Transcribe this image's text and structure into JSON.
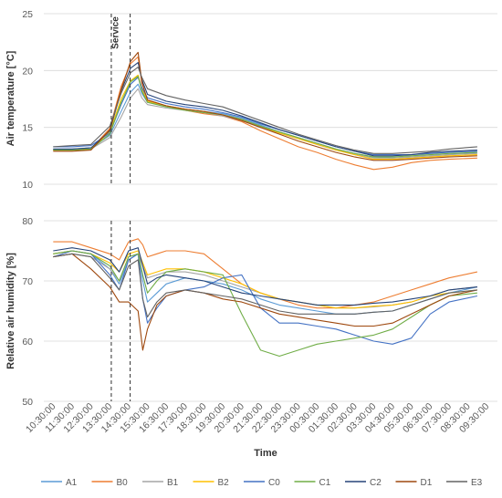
{
  "chart_data": [
    {
      "type": "line",
      "ylabel": "Air temperature [°C]",
      "ylim": [
        10,
        25
      ],
      "yticks": [
        10,
        15,
        20,
        25
      ],
      "grid": true,
      "annotation": "Service",
      "vlines_x": [
        13.58,
        14.58
      ],
      "categories": [
        "10:30:00",
        "11:30:00",
        "12:30:00",
        "13:30:00",
        "14:30:00",
        "15:30:00",
        "16:30:00",
        "17:30:00",
        "18:30:00",
        "19:30:00",
        "20:30:00",
        "21:30:00",
        "22:30:00",
        "23:30:00",
        "00:30:00",
        "01:30:00",
        "02:30:00",
        "03:30:00",
        "04:30:00",
        "05:30:00",
        "06:30:00",
        "07:30:00",
        "08:30:00",
        "09:30:00"
      ],
      "x": [
        0,
        1,
        2,
        3,
        3.6,
        4.1,
        4.5,
        4.7,
        5,
        6,
        7,
        8,
        9,
        10,
        11,
        12,
        13,
        14,
        15,
        16,
        17,
        18,
        19,
        20,
        21,
        22.5
      ],
      "series": [
        {
          "name": "A1",
          "color": "#5b9bd5",
          "values": [
            13.1,
            13.1,
            13.2,
            14.3,
            16.4,
            18.1,
            18.8,
            18.0,
            17.2,
            16.9,
            16.6,
            16.4,
            16.2,
            15.8,
            15.2,
            14.6,
            14.1,
            13.6,
            13.1,
            12.7,
            12.4,
            12.3,
            12.4,
            12.5,
            12.6,
            12.8
          ]
        },
        {
          "name": "B0",
          "color": "#ed7d31",
          "values": [
            13.0,
            13.0,
            13.1,
            14.9,
            18.6,
            20.6,
            21.2,
            18.9,
            17.4,
            16.9,
            16.5,
            16.2,
            16.0,
            15.5,
            14.7,
            14.0,
            13.3,
            12.8,
            12.2,
            11.7,
            11.3,
            11.5,
            11.9,
            12.1,
            12.2,
            12.3
          ]
        },
        {
          "name": "B1",
          "color": "#a5a5a5",
          "values": [
            13.0,
            13.0,
            13.1,
            14.1,
            15.9,
            17.6,
            18.4,
            17.6,
            17.0,
            16.7,
            16.5,
            16.3,
            16.0,
            15.6,
            15.0,
            14.5,
            14.0,
            13.5,
            13.0,
            12.6,
            12.3,
            12.3,
            12.4,
            12.5,
            12.6,
            12.7
          ]
        },
        {
          "name": "B2",
          "color": "#ffc000",
          "values": [
            13.0,
            13.0,
            13.1,
            14.6,
            17.5,
            19.1,
            19.6,
            18.4,
            17.3,
            16.9,
            16.6,
            16.4,
            16.1,
            15.7,
            15.1,
            14.5,
            14.0,
            13.5,
            13.0,
            12.6,
            12.2,
            12.2,
            12.3,
            12.4,
            12.5,
            12.6
          ]
        },
        {
          "name": "C0",
          "color": "#4472c4",
          "values": [
            13.3,
            13.3,
            13.4,
            14.5,
            17.0,
            18.8,
            19.4,
            18.5,
            17.6,
            17.1,
            16.8,
            16.6,
            16.3,
            15.9,
            15.3,
            14.8,
            14.3,
            13.8,
            13.3,
            12.9,
            12.6,
            12.6,
            12.6,
            12.7,
            12.8,
            12.9
          ]
        },
        {
          "name": "C1",
          "color": "#70ad47",
          "values": [
            13.0,
            13.0,
            13.1,
            14.4,
            17.2,
            19.0,
            19.5,
            18.2,
            17.2,
            16.8,
            16.5,
            16.3,
            16.1,
            15.7,
            15.1,
            14.6,
            14.1,
            13.6,
            13.1,
            12.7,
            12.4,
            12.4,
            12.5,
            12.6,
            12.7,
            12.8
          ]
        },
        {
          "name": "C2",
          "color": "#264478",
          "values": [
            13.1,
            13.1,
            13.2,
            14.7,
            18.2,
            20.2,
            20.7,
            19.2,
            17.9,
            17.3,
            17.0,
            16.8,
            16.5,
            16.0,
            15.4,
            14.8,
            14.3,
            13.8,
            13.3,
            12.9,
            12.5,
            12.5,
            12.6,
            12.8,
            12.9,
            13.0
          ]
        },
        {
          "name": "D1",
          "color": "#9e480e",
          "values": [
            12.9,
            12.9,
            13.0,
            14.8,
            18.3,
            20.8,
            21.6,
            19.0,
            17.4,
            16.9,
            16.6,
            16.4,
            16.1,
            15.6,
            15.0,
            14.4,
            13.8,
            13.3,
            12.8,
            12.4,
            12.1,
            12.1,
            12.2,
            12.3,
            12.4,
            12.5
          ]
        },
        {
          "name": "E3",
          "color": "#636363",
          "values": [
            13.3,
            13.4,
            13.5,
            15.1,
            18.0,
            19.8,
            20.3,
            19.4,
            18.4,
            17.8,
            17.4,
            17.1,
            16.8,
            16.2,
            15.6,
            15.0,
            14.4,
            13.9,
            13.4,
            13.0,
            12.7,
            12.7,
            12.8,
            12.9,
            13.1,
            13.3
          ]
        }
      ]
    },
    {
      "type": "line",
      "ylabel": "Relative air humidity [%]",
      "xlabel": "Time",
      "ylim": [
        50,
        80
      ],
      "yticks": [
        50,
        60,
        70,
        80
      ],
      "grid": true,
      "vlines_x": [
        13.58,
        14.58
      ],
      "categories": [
        "10:30:00",
        "11:30:00",
        "12:30:00",
        "13:30:00",
        "14:30:00",
        "15:30:00",
        "16:30:00",
        "17:30:00",
        "18:30:00",
        "19:30:00",
        "20:30:00",
        "21:30:00",
        "22:30:00",
        "23:30:00",
        "00:30:00",
        "01:30:00",
        "02:30:00",
        "03:30:00",
        "04:30:00",
        "05:30:00",
        "06:30:00",
        "07:30:00",
        "08:30:00",
        "09:30:00"
      ],
      "x": [
        0,
        1,
        2,
        3,
        3.5,
        4.0,
        4.5,
        4.75,
        5,
        5.5,
        6,
        7,
        8,
        9,
        10,
        11,
        12,
        13,
        14,
        15,
        16,
        17,
        18,
        19,
        20,
        21,
        22.5
      ],
      "series": [
        {
          "name": "A1",
          "color": "#5b9bd5",
          "values": [
            74.5,
            75.0,
            74.5,
            72.0,
            69.5,
            73.5,
            74.5,
            70.0,
            66.5,
            68.0,
            69.5,
            70.5,
            70.0,
            69.5,
            68.5,
            67.0,
            66.0,
            65.5,
            65.0,
            64.5,
            64.5,
            64.8,
            65.0,
            66.0,
            67.0,
            68.0,
            69.0
          ]
        },
        {
          "name": "B0",
          "color": "#ed7d31",
          "values": [
            76.5,
            76.5,
            75.5,
            74.5,
            73.5,
            76.5,
            77.0,
            76.0,
            74.0,
            74.5,
            75.0,
            75.0,
            74.5,
            72.0,
            69.5,
            68.0,
            67.0,
            66.0,
            65.5,
            65.5,
            66.0,
            66.5,
            67.5,
            68.5,
            69.5,
            70.5,
            71.5
          ]
        },
        {
          "name": "B1",
          "color": "#a5a5a5",
          "values": [
            74.0,
            74.5,
            74.0,
            72.0,
            70.0,
            74.0,
            74.5,
            72.5,
            70.5,
            71.0,
            71.5,
            71.5,
            71.0,
            70.0,
            69.0,
            68.0,
            67.0,
            66.5,
            66.0,
            65.5,
            65.5,
            65.7,
            66.0,
            66.5,
            67.5,
            68.5,
            69.0
          ]
        },
        {
          "name": "B2",
          "color": "#ffc000",
          "values": [
            74.5,
            75.0,
            74.5,
            73.0,
            71.5,
            74.5,
            75.0,
            73.0,
            71.0,
            71.5,
            72.0,
            72.0,
            71.5,
            70.5,
            69.5,
            68.0,
            67.0,
            66.5,
            66.0,
            65.5,
            65.5,
            65.8,
            66.0,
            66.5,
            67.5,
            68.0,
            68.5
          ]
        },
        {
          "name": "C0",
          "color": "#4472c4",
          "values": [
            74.0,
            75.0,
            74.5,
            71.0,
            68.5,
            73.5,
            74.5,
            67.0,
            63.0,
            65.5,
            67.5,
            68.5,
            69.0,
            70.5,
            71.0,
            65.5,
            63.0,
            63.0,
            62.5,
            62.0,
            61.0,
            60.0,
            59.5,
            60.5,
            64.5,
            66.5,
            67.5
          ]
        },
        {
          "name": "C1",
          "color": "#70ad47",
          "values": [
            74.5,
            75.0,
            74.5,
            72.5,
            70.0,
            74.0,
            74.5,
            71.0,
            68.0,
            70.0,
            71.5,
            72.0,
            71.5,
            71.0,
            64.5,
            58.5,
            57.5,
            58.5,
            59.5,
            60.0,
            60.5,
            61.0,
            62.0,
            64.0,
            66.0,
            67.5,
            68.0
          ]
        },
        {
          "name": "C2",
          "color": "#264478",
          "values": [
            75.0,
            75.5,
            75.0,
            73.5,
            71.5,
            75.0,
            75.5,
            72.5,
            69.5,
            70.5,
            71.0,
            70.5,
            70.0,
            69.0,
            68.0,
            67.5,
            67.0,
            66.5,
            66.0,
            66.0,
            66.0,
            66.3,
            66.5,
            67.0,
            67.5,
            68.5,
            69.0
          ]
        },
        {
          "name": "D1",
          "color": "#9e480e",
          "values": [
            74.0,
            74.5,
            72.0,
            69.0,
            66.5,
            66.5,
            65.0,
            58.5,
            62.0,
            66.0,
            67.5,
            68.5,
            68.0,
            67.0,
            66.5,
            65.5,
            64.5,
            64.0,
            63.5,
            63.0,
            62.5,
            62.5,
            63.0,
            64.5,
            66.0,
            67.5,
            68.5
          ]
        },
        {
          "name": "E3",
          "color": "#636363",
          "values": [
            74.0,
            74.5,
            74.0,
            70.5,
            68.5,
            72.5,
            73.5,
            67.0,
            64.0,
            66.5,
            68.0,
            68.5,
            68.0,
            67.5,
            67.0,
            66.0,
            65.0,
            64.5,
            64.5,
            64.5,
            64.5,
            64.8,
            65.0,
            66.0,
            67.0,
            68.0,
            68.5
          ]
        }
      ]
    }
  ],
  "legend": {
    "placement": "bottom",
    "items": [
      "A1",
      "B0",
      "B1",
      "B2",
      "C0",
      "C1",
      "C2",
      "D1",
      "E3"
    ]
  }
}
